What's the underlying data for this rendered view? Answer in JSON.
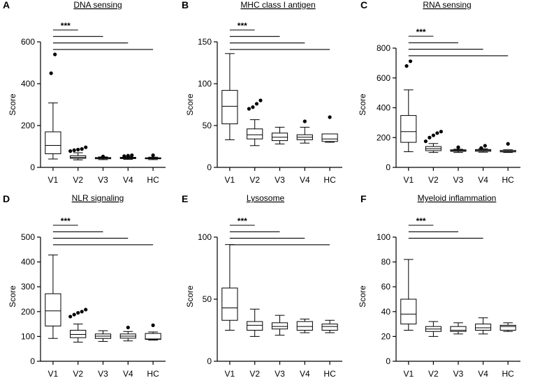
{
  "figure": {
    "categories": [
      "V1",
      "V2",
      "V3",
      "V4",
      "HC"
    ],
    "ylabel": "Score",
    "significance_label": "***"
  },
  "chart_data": [
    {
      "type": "box",
      "panel": "A",
      "title": "DNA sensing",
      "ylabel": "Score",
      "categories": [
        "V1",
        "V2",
        "V3",
        "V4",
        "HC"
      ],
      "ylim": [
        0,
        600
      ],
      "yticks": [
        0,
        200,
        400,
        600
      ],
      "boxes": [
        {
          "category": "V1",
          "whisker_low": 40,
          "q1": 65,
          "median": 105,
          "q3": 170,
          "whisker_high": 308,
          "outliers": [
            450,
            540
          ]
        },
        {
          "category": "V2",
          "whisker_low": 36,
          "q1": 43,
          "median": 48,
          "q3": 56,
          "whisker_high": 70,
          "outliers": [
            78,
            82,
            85,
            88,
            96
          ]
        },
        {
          "category": "V3",
          "whisker_low": 37,
          "q1": 41,
          "median": 44,
          "q3": 47,
          "whisker_high": 50,
          "outliers": [
            52
          ]
        },
        {
          "category": "V4",
          "whisker_low": 38,
          "q1": 42,
          "median": 45,
          "q3": 48,
          "whisker_high": 52,
          "outliers": [
            54,
            56,
            58
          ]
        },
        {
          "category": "HC",
          "whisker_low": 37,
          "q1": 41,
          "median": 43,
          "q3": 46,
          "whisker_high": 49,
          "outliers": [
            58
          ]
        }
      ],
      "significance": [
        {
          "from": "V1",
          "to": "V2",
          "label": "***"
        },
        {
          "from": "V1",
          "to": "V3",
          "label": ""
        },
        {
          "from": "V1",
          "to": "V4",
          "label": ""
        },
        {
          "from": "V1",
          "to": "HC",
          "label": ""
        }
      ]
    },
    {
      "type": "box",
      "panel": "B",
      "title": "MHC class I antigen",
      "ylabel": "Score",
      "categories": [
        "V1",
        "V2",
        "V3",
        "V4",
        "HC"
      ],
      "ylim": [
        0,
        150
      ],
      "yticks": [
        0,
        50,
        100,
        150
      ],
      "boxes": [
        {
          "category": "V1",
          "whisker_low": 33,
          "q1": 52,
          "median": 73,
          "q3": 92,
          "whisker_high": 136,
          "outliers": []
        },
        {
          "category": "V2",
          "whisker_low": 26,
          "q1": 34,
          "median": 39,
          "q3": 46,
          "whisker_high": 57,
          "outliers": [
            70,
            72,
            76,
            80
          ]
        },
        {
          "category": "V3",
          "whisker_low": 28,
          "q1": 32,
          "median": 36,
          "q3": 41,
          "whisker_high": 48,
          "outliers": []
        },
        {
          "category": "V4",
          "whisker_low": 29,
          "q1": 33,
          "median": 36,
          "q3": 39,
          "whisker_high": 48,
          "outliers": [
            55
          ]
        },
        {
          "category": "HC",
          "whisker_low": 30,
          "q1": 31,
          "median": 34,
          "q3": 40,
          "whisker_high": 40,
          "outliers": [
            60
          ]
        }
      ],
      "significance": [
        {
          "from": "V1",
          "to": "V2",
          "label": "***"
        },
        {
          "from": "V1",
          "to": "V3",
          "label": ""
        },
        {
          "from": "V1",
          "to": "V4",
          "label": ""
        },
        {
          "from": "V1",
          "to": "HC",
          "label": ""
        }
      ]
    },
    {
      "type": "box",
      "panel": "C",
      "title": "RNA sensing",
      "ylabel": "Score",
      "categories": [
        "V1",
        "V2",
        "V3",
        "V4",
        "HC"
      ],
      "ylim": [
        0,
        800
      ],
      "yticks": [
        0,
        200,
        400,
        600,
        800
      ],
      "boxes": [
        {
          "category": "V1",
          "whisker_low": 105,
          "q1": 168,
          "median": 240,
          "q3": 348,
          "whisker_high": 520,
          "outliers": [
            680,
            712
          ]
        },
        {
          "category": "V2",
          "whisker_low": 100,
          "q1": 112,
          "median": 125,
          "q3": 140,
          "whisker_high": 160,
          "outliers": [
            175,
            200,
            215,
            230,
            240
          ]
        },
        {
          "category": "V3",
          "whisker_low": 100,
          "q1": 108,
          "median": 112,
          "q3": 118,
          "whisker_high": 122,
          "outliers": [
            135
          ]
        },
        {
          "category": "V4",
          "whisker_low": 102,
          "q1": 108,
          "median": 114,
          "q3": 120,
          "whisker_high": 125,
          "outliers": [
            130,
            145
          ]
        },
        {
          "category": "HC",
          "whisker_low": 100,
          "q1": 104,
          "median": 107,
          "q3": 114,
          "whisker_high": 118,
          "outliers": [
            158
          ]
        }
      ],
      "significance": [
        {
          "from": "V1",
          "to": "V2",
          "label": "***"
        },
        {
          "from": "V1",
          "to": "V3",
          "label": ""
        },
        {
          "from": "V1",
          "to": "V4",
          "label": ""
        },
        {
          "from": "V1",
          "to": "HC",
          "label": ""
        }
      ]
    },
    {
      "type": "box",
      "panel": "D",
      "title": "NLR signaling",
      "ylabel": "Score",
      "categories": [
        "V1",
        "V2",
        "V3",
        "V4",
        "HC"
      ],
      "ylim": [
        0,
        500
      ],
      "yticks": [
        0,
        100,
        200,
        300,
        400,
        500
      ],
      "boxes": [
        {
          "category": "V1",
          "whisker_low": 92,
          "q1": 142,
          "median": 203,
          "q3": 272,
          "whisker_high": 428,
          "outliers": []
        },
        {
          "category": "V2",
          "whisker_low": 77,
          "q1": 95,
          "median": 108,
          "q3": 125,
          "whisker_high": 150,
          "outliers": [
            180,
            188,
            195,
            200,
            208
          ]
        },
        {
          "category": "V3",
          "whisker_low": 80,
          "q1": 92,
          "median": 101,
          "q3": 110,
          "whisker_high": 123,
          "outliers": []
        },
        {
          "category": "V4",
          "whisker_low": 82,
          "q1": 93,
          "median": 101,
          "q3": 110,
          "whisker_high": 120,
          "outliers": [
            136
          ]
        },
        {
          "category": "HC",
          "whisker_low": 85,
          "q1": 88,
          "median": 90,
          "q3": 112,
          "whisker_high": 118,
          "outliers": [
            145
          ]
        }
      ],
      "significance": [
        {
          "from": "V1",
          "to": "V2",
          "label": "***"
        },
        {
          "from": "V1",
          "to": "V3",
          "label": ""
        },
        {
          "from": "V1",
          "to": "V4",
          "label": ""
        },
        {
          "from": "V1",
          "to": "HC",
          "label": ""
        }
      ]
    },
    {
      "type": "box",
      "panel": "E",
      "title": "Lysosome",
      "ylabel": "Score",
      "categories": [
        "V1",
        "V2",
        "V3",
        "V4",
        "HC"
      ],
      "ylim": [
        0,
        100
      ],
      "yticks": [
        0,
        50,
        100
      ],
      "boxes": [
        {
          "category": "V1",
          "whisker_low": 25,
          "q1": 33,
          "median": 43,
          "q3": 59,
          "whisker_high": 94,
          "outliers": []
        },
        {
          "category": "V2",
          "whisker_low": 20,
          "q1": 25,
          "median": 29,
          "q3": 32,
          "whisker_high": 42,
          "outliers": []
        },
        {
          "category": "V3",
          "whisker_low": 21,
          "q1": 26,
          "median": 28,
          "q3": 31,
          "whisker_high": 37,
          "outliers": []
        },
        {
          "category": "V4",
          "whisker_low": 23,
          "q1": 25,
          "median": 28,
          "q3": 32,
          "whisker_high": 34,
          "outliers": []
        },
        {
          "category": "HC",
          "whisker_low": 23,
          "q1": 25,
          "median": 28,
          "q3": 30,
          "whisker_high": 33,
          "outliers": []
        }
      ],
      "significance": [
        {
          "from": "V1",
          "to": "V2",
          "label": "***"
        },
        {
          "from": "V1",
          "to": "V3",
          "label": ""
        },
        {
          "from": "V1",
          "to": "V4",
          "label": ""
        },
        {
          "from": "V1",
          "to": "HC",
          "label": ""
        }
      ]
    },
    {
      "type": "box",
      "panel": "F",
      "title": "Myeloid inflammation",
      "ylabel": "Score",
      "categories": [
        "V1",
        "V2",
        "V3",
        "V4",
        "HC"
      ],
      "ylim": [
        0,
        100
      ],
      "yticks": [
        0,
        20,
        40,
        60,
        80,
        100
      ],
      "boxes": [
        {
          "category": "V1",
          "whisker_low": 25,
          "q1": 30,
          "median": 38,
          "q3": 50,
          "whisker_high": 82,
          "outliers": []
        },
        {
          "category": "V2",
          "whisker_low": 20,
          "q1": 24,
          "median": 26,
          "q3": 28,
          "whisker_high": 32,
          "outliers": []
        },
        {
          "category": "V3",
          "whisker_low": 22,
          "q1": 24,
          "median": 25,
          "q3": 28,
          "whisker_high": 31,
          "outliers": []
        },
        {
          "category": "V4",
          "whisker_low": 22,
          "q1": 25,
          "median": 27,
          "q3": 30,
          "whisker_high": 35,
          "outliers": []
        },
        {
          "category": "HC",
          "whisker_low": 24,
          "q1": 25,
          "median": 28,
          "q3": 29,
          "whisker_high": 31,
          "outliers": []
        }
      ],
      "significance": [
        {
          "from": "V1",
          "to": "V2",
          "label": "***"
        },
        {
          "from": "V1",
          "to": "V3",
          "label": ""
        },
        {
          "from": "V1",
          "to": "V4",
          "label": ""
        }
      ]
    }
  ]
}
